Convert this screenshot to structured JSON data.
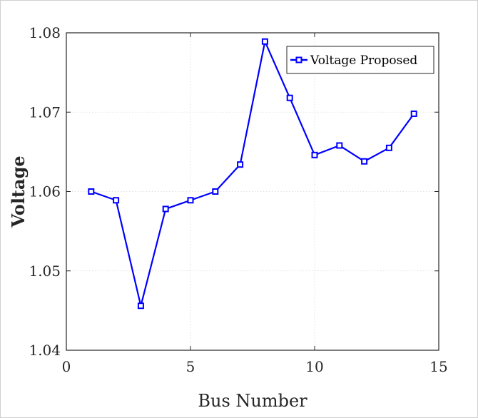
{
  "chart_data": {
    "type": "line",
    "xlabel": "Bus Number",
    "ylabel": "Voltage",
    "xlim": [
      0,
      15
    ],
    "ylim": [
      1.04,
      1.08
    ],
    "xticks": [
      0,
      5,
      10,
      15
    ],
    "xtick_labels": [
      "0",
      "5",
      "10",
      "15"
    ],
    "yticks": [
      1.04,
      1.05,
      1.06,
      1.07,
      1.08
    ],
    "ytick_labels": [
      "1.04",
      "1.05",
      "1.06",
      "1.07",
      "1.08"
    ],
    "grid": true,
    "legend_position": "top-right",
    "series": [
      {
        "name": "Voltage Proposed",
        "color": "#0000ff",
        "marker": "square",
        "x": [
          1,
          2,
          3,
          4,
          5,
          6,
          7,
          8,
          9,
          10,
          11,
          12,
          13,
          14
        ],
        "y": [
          1.06,
          1.0589,
          1.0456,
          1.0578,
          1.0589,
          1.06,
          1.0634,
          1.0789,
          1.0718,
          1.0646,
          1.0658,
          1.0638,
          1.0655,
          1.0698
        ]
      }
    ]
  }
}
